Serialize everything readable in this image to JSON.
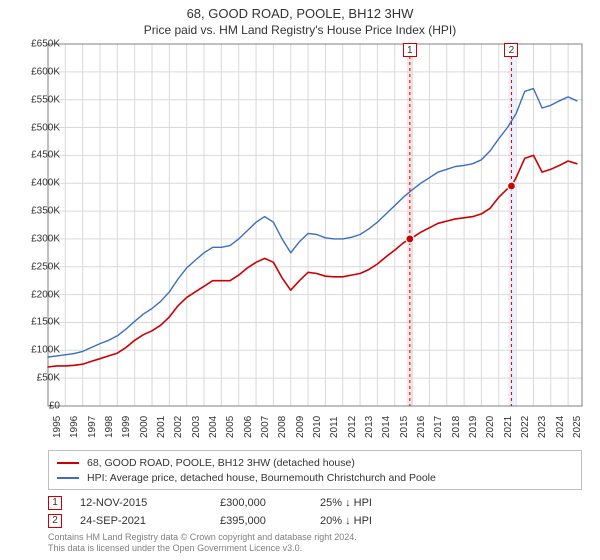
{
  "title": "68, GOOD ROAD, POOLE, BH12 3HW",
  "subtitle": "Price paid vs. HM Land Registry's House Price Index (HPI)",
  "chart": {
    "type": "line",
    "background_color": "#ffffff",
    "grid_color": "#d9d9d9",
    "y_axis": {
      "min": 0,
      "max": 650000,
      "tick_step": 50000,
      "tick_labels": [
        "£0",
        "£50K",
        "£100K",
        "£150K",
        "£200K",
        "£250K",
        "£300K",
        "£350K",
        "£400K",
        "£450K",
        "£500K",
        "£550K",
        "£600K",
        "£650K"
      ],
      "label_fontsize": 10
    },
    "x_axis": {
      "min": 1995,
      "max": 2025.8,
      "tick_step": 1,
      "tick_labels": [
        "1995",
        "1996",
        "1997",
        "1998",
        "1999",
        "2000",
        "2001",
        "2002",
        "2003",
        "2004",
        "2005",
        "2006",
        "2007",
        "2008",
        "2009",
        "2010",
        "2011",
        "2012",
        "2013",
        "2014",
        "2015",
        "2016",
        "2017",
        "2018",
        "2019",
        "2020",
        "2021",
        "2022",
        "2023",
        "2024",
        "2025"
      ],
      "label_rotation": -90,
      "label_fontsize": 10
    },
    "series": [
      {
        "name": "property_price",
        "label": "68, GOOD ROAD, POOLE, BH12 3HW (detached house)",
        "color": "#cc0000",
        "line_width": 1.6,
        "data": [
          [
            1995.0,
            70000
          ],
          [
            1995.5,
            72000
          ],
          [
            1996.0,
            72000
          ],
          [
            1996.5,
            73000
          ],
          [
            1997.0,
            75000
          ],
          [
            1997.5,
            80000
          ],
          [
            1998.0,
            85000
          ],
          [
            1998.5,
            90000
          ],
          [
            1999.0,
            95000
          ],
          [
            1999.5,
            105000
          ],
          [
            2000.0,
            118000
          ],
          [
            2000.5,
            128000
          ],
          [
            2001.0,
            135000
          ],
          [
            2001.5,
            145000
          ],
          [
            2002.0,
            160000
          ],
          [
            2002.5,
            180000
          ],
          [
            2003.0,
            195000
          ],
          [
            2003.5,
            205000
          ],
          [
            2004.0,
            215000
          ],
          [
            2004.5,
            225000
          ],
          [
            2005.0,
            225000
          ],
          [
            2005.5,
            225000
          ],
          [
            2006.0,
            235000
          ],
          [
            2006.5,
            248000
          ],
          [
            2007.0,
            258000
          ],
          [
            2007.5,
            265000
          ],
          [
            2008.0,
            258000
          ],
          [
            2008.5,
            230000
          ],
          [
            2009.0,
            208000
          ],
          [
            2009.5,
            225000
          ],
          [
            2010.0,
            240000
          ],
          [
            2010.5,
            238000
          ],
          [
            2011.0,
            233000
          ],
          [
            2011.5,
            232000
          ],
          [
            2012.0,
            232000
          ],
          [
            2012.5,
            235000
          ],
          [
            2013.0,
            238000
          ],
          [
            2013.5,
            245000
          ],
          [
            2014.0,
            255000
          ],
          [
            2014.5,
            268000
          ],
          [
            2015.0,
            280000
          ],
          [
            2015.5,
            293000
          ],
          [
            2015.87,
            300000
          ],
          [
            2016.0,
            302000
          ],
          [
            2016.5,
            312000
          ],
          [
            2017.0,
            320000
          ],
          [
            2017.5,
            328000
          ],
          [
            2018.0,
            332000
          ],
          [
            2018.5,
            336000
          ],
          [
            2019.0,
            338000
          ],
          [
            2019.5,
            340000
          ],
          [
            2020.0,
            345000
          ],
          [
            2020.5,
            355000
          ],
          [
            2021.0,
            375000
          ],
          [
            2021.5,
            390000
          ],
          [
            2021.73,
            395000
          ],
          [
            2022.0,
            410000
          ],
          [
            2022.5,
            445000
          ],
          [
            2023.0,
            450000
          ],
          [
            2023.5,
            420000
          ],
          [
            2024.0,
            425000
          ],
          [
            2024.5,
            432000
          ],
          [
            2025.0,
            440000
          ],
          [
            2025.5,
            435000
          ]
        ]
      },
      {
        "name": "hpi",
        "label": "HPI: Average price, detached house, Bournemouth Christchurch and Poole",
        "color": "#3a6fbf",
        "line_width": 1.4,
        "data": [
          [
            1995.0,
            88000
          ],
          [
            1995.5,
            90000
          ],
          [
            1996.0,
            92000
          ],
          [
            1996.5,
            94000
          ],
          [
            1997.0,
            98000
          ],
          [
            1997.5,
            105000
          ],
          [
            1998.0,
            112000
          ],
          [
            1998.5,
            118000
          ],
          [
            1999.0,
            126000
          ],
          [
            1999.5,
            138000
          ],
          [
            2000.0,
            152000
          ],
          [
            2000.5,
            165000
          ],
          [
            2001.0,
            175000
          ],
          [
            2001.5,
            188000
          ],
          [
            2002.0,
            205000
          ],
          [
            2002.5,
            228000
          ],
          [
            2003.0,
            248000
          ],
          [
            2003.5,
            262000
          ],
          [
            2004.0,
            275000
          ],
          [
            2004.5,
            285000
          ],
          [
            2005.0,
            285000
          ],
          [
            2005.5,
            288000
          ],
          [
            2006.0,
            300000
          ],
          [
            2006.5,
            315000
          ],
          [
            2007.0,
            330000
          ],
          [
            2007.5,
            340000
          ],
          [
            2008.0,
            330000
          ],
          [
            2008.5,
            300000
          ],
          [
            2009.0,
            275000
          ],
          [
            2009.5,
            295000
          ],
          [
            2010.0,
            310000
          ],
          [
            2010.5,
            308000
          ],
          [
            2011.0,
            302000
          ],
          [
            2011.5,
            300000
          ],
          [
            2012.0,
            300000
          ],
          [
            2012.5,
            303000
          ],
          [
            2013.0,
            308000
          ],
          [
            2013.5,
            318000
          ],
          [
            2014.0,
            330000
          ],
          [
            2014.5,
            345000
          ],
          [
            2015.0,
            360000
          ],
          [
            2015.5,
            375000
          ],
          [
            2016.0,
            388000
          ],
          [
            2016.5,
            400000
          ],
          [
            2017.0,
            410000
          ],
          [
            2017.5,
            420000
          ],
          [
            2018.0,
            425000
          ],
          [
            2018.5,
            430000
          ],
          [
            2019.0,
            432000
          ],
          [
            2019.5,
            435000
          ],
          [
            2020.0,
            442000
          ],
          [
            2020.5,
            458000
          ],
          [
            2021.0,
            480000
          ],
          [
            2021.5,
            500000
          ],
          [
            2022.0,
            525000
          ],
          [
            2022.5,
            565000
          ],
          [
            2023.0,
            570000
          ],
          [
            2023.5,
            535000
          ],
          [
            2024.0,
            540000
          ],
          [
            2024.5,
            548000
          ],
          [
            2025.0,
            555000
          ],
          [
            2025.5,
            548000
          ]
        ]
      }
    ],
    "sale_markers": [
      {
        "id": "1",
        "x": 2015.87,
        "y": 300000,
        "band_color": "#ffe6e6",
        "band_width_years": 0.35
      },
      {
        "id": "2",
        "x": 2021.73,
        "y": 395000,
        "band_color": "#e8eefc",
        "band_width_years": 0.35
      }
    ],
    "marker_point": {
      "radius": 4,
      "fill": "#cc0000",
      "stroke": "#ffffff"
    },
    "marker_label_box": {
      "border_color": "#cc0000",
      "background": "#ffffff",
      "fontsize": 10
    },
    "vline": {
      "color": "#cc0000",
      "dash": "3,3",
      "width": 1
    }
  },
  "legend": {
    "border_color": "#bfbfbf",
    "fontsize": 10.5,
    "items": [
      {
        "color": "#cc0000",
        "label": "68, GOOD ROAD, POOLE, BH12 3HW (detached house)"
      },
      {
        "color": "#3a6fbf",
        "label": "HPI: Average price, detached house, Bournemouth Christchurch and Poole"
      }
    ]
  },
  "annotations": [
    {
      "id": "1",
      "date": "12-NOV-2015",
      "price": "£300,000",
      "diff": "25% ↓ HPI"
    },
    {
      "id": "2",
      "date": "24-SEP-2021",
      "price": "£395,000",
      "diff": "20% ↓ HPI"
    }
  ],
  "footer": {
    "line1": "Contains HM Land Registry data © Crown copyright and database right 2024.",
    "line2": "This data is licensed under the Open Government Licence v3.0.",
    "color": "#808080",
    "fontsize": 9
  }
}
